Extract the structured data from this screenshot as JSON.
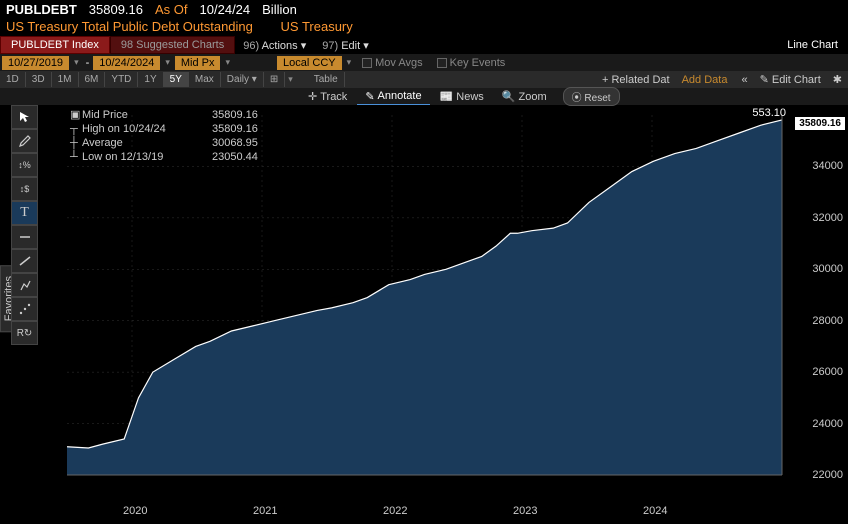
{
  "header": {
    "ticker": "PUBLDEBT",
    "value": "35809.16",
    "asof_label": "As Of",
    "asof_date": "10/24/24",
    "unit": "Billion",
    "title": "US Treasury Total Public Debt Outstanding",
    "source": "US Treasury"
  },
  "tabs": {
    "index": "PUBLDEBT Index",
    "suggested": "98 Suggested Charts",
    "actions": "Actions",
    "actions_num": "96)",
    "edit": "Edit",
    "edit_num": "97)",
    "line_chart": "Line Chart"
  },
  "controls": {
    "date_from": "10/27/2019",
    "date_to": "10/24/2024",
    "price_type": "Mid Px",
    "currency": "Local CCY",
    "mov_avgs": "Mov Avgs",
    "key_events": "Key Events",
    "ranges": [
      "1D",
      "3D",
      "1M",
      "6M",
      "YTD",
      "1Y",
      "5Y",
      "Max"
    ],
    "active_range": "5Y",
    "freq": "Daily",
    "chart_icon": "⊞",
    "table": "Table",
    "related": "+ Related Dat",
    "add_data": "Add Data",
    "edit_chart": "Edit Chart",
    "collapse": "«"
  },
  "toolbar": {
    "track": "Track",
    "annotate": "Annotate",
    "news": "News",
    "zoom": "Zoom",
    "reset": "Reset"
  },
  "favorites_label": "Favorites",
  "legend": {
    "title": "Mid Price",
    "title_val": "35809.16",
    "high_lbl": "High on 10/24/24",
    "high_val": "35809.16",
    "avg_lbl": "Average",
    "avg_val": "30068.95",
    "low_lbl": "Low on 12/13/19",
    "low_val": "23050.44"
  },
  "annotation_value": "553.10",
  "price_tag": "35809.16",
  "chart": {
    "type": "area",
    "fill_color": "#1a3a5a",
    "line_color": "#ffffff",
    "background_color": "#000000",
    "grid_color": "#333333",
    "ylim": [
      22000,
      36000
    ],
    "ytick_step": 2000,
    "yticks": [
      "22000",
      "24000",
      "26000",
      "28000",
      "30000",
      "32000",
      "34000"
    ],
    "xticks": [
      "2020",
      "2021",
      "2022",
      "2023",
      "2024"
    ],
    "points": [
      [
        0.0,
        23100
      ],
      [
        0.03,
        23050
      ],
      [
        0.05,
        23200
      ],
      [
        0.08,
        23400
      ],
      [
        0.1,
        25000
      ],
      [
        0.12,
        26000
      ],
      [
        0.15,
        26500
      ],
      [
        0.18,
        27000
      ],
      [
        0.2,
        27200
      ],
      [
        0.23,
        27600
      ],
      [
        0.26,
        27800
      ],
      [
        0.29,
        28000
      ],
      [
        0.32,
        28200
      ],
      [
        0.35,
        28400
      ],
      [
        0.37,
        28500
      ],
      [
        0.4,
        28700
      ],
      [
        0.42,
        28900
      ],
      [
        0.45,
        29400
      ],
      [
        0.48,
        29600
      ],
      [
        0.5,
        29800
      ],
      [
        0.53,
        30000
      ],
      [
        0.56,
        30300
      ],
      [
        0.58,
        30500
      ],
      [
        0.6,
        30900
      ],
      [
        0.62,
        31400
      ],
      [
        0.63,
        31400
      ],
      [
        0.65,
        31500
      ],
      [
        0.68,
        31600
      ],
      [
        0.7,
        31800
      ],
      [
        0.73,
        32600
      ],
      [
        0.76,
        33200
      ],
      [
        0.79,
        33800
      ],
      [
        0.82,
        34200
      ],
      [
        0.85,
        34500
      ],
      [
        0.88,
        34700
      ],
      [
        0.91,
        35000
      ],
      [
        0.94,
        35300
      ],
      [
        0.97,
        35600
      ],
      [
        1.0,
        35809
      ]
    ]
  },
  "tools": [
    "cursor",
    "pencil",
    "percent",
    "dollar",
    "text",
    "line",
    "trend",
    "pitchfork",
    "dots",
    "reset"
  ]
}
